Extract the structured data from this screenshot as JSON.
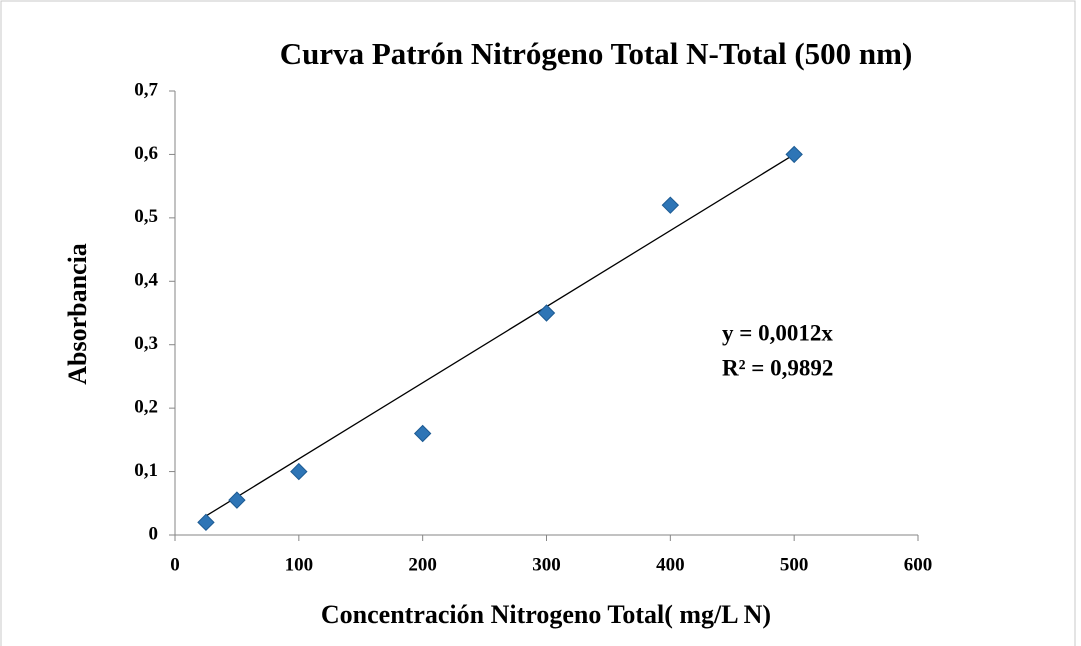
{
  "chart_data": {
    "type": "scatter",
    "title": "Curva Patrón Nitrógeno Total N-Total (500 nm)",
    "x_label": "Concentración Nitrogeno Total( mg/L N)",
    "y_label": "Absorbancia",
    "series": [
      {
        "name": "Absorbancia",
        "color": "#2e75b6",
        "x": [
          25,
          50,
          100,
          200,
          300,
          400,
          500
        ],
        "values": [
          0.02,
          0.055,
          0.1,
          0.16,
          0.35,
          0.52,
          0.6
        ]
      }
    ],
    "trendline": {
      "slope": 0.0012,
      "label": "y = 0,0012x",
      "r2": 0.9892,
      "r2_label": "R² = 0,9892",
      "color": "#000000"
    },
    "xlim": [
      0,
      600
    ],
    "xticks": [
      0,
      100,
      200,
      300,
      400,
      500,
      600
    ],
    "ylim": [
      0,
      0.7
    ],
    "yticks": [
      0,
      {
        "value": 0.1,
        "label": "0,1"
      },
      {
        "value": 0.2,
        "label": "0,2"
      },
      {
        "value": 0.3,
        "label": "0,3"
      },
      {
        "value": 0.4,
        "label": "0,4"
      },
      {
        "value": 0.5,
        "label": "0,5"
      },
      {
        "value": 0.6,
        "label": "0,6"
      },
      {
        "value": 0.7,
        "label": "0,7"
      }
    ],
    "grid": false
  }
}
